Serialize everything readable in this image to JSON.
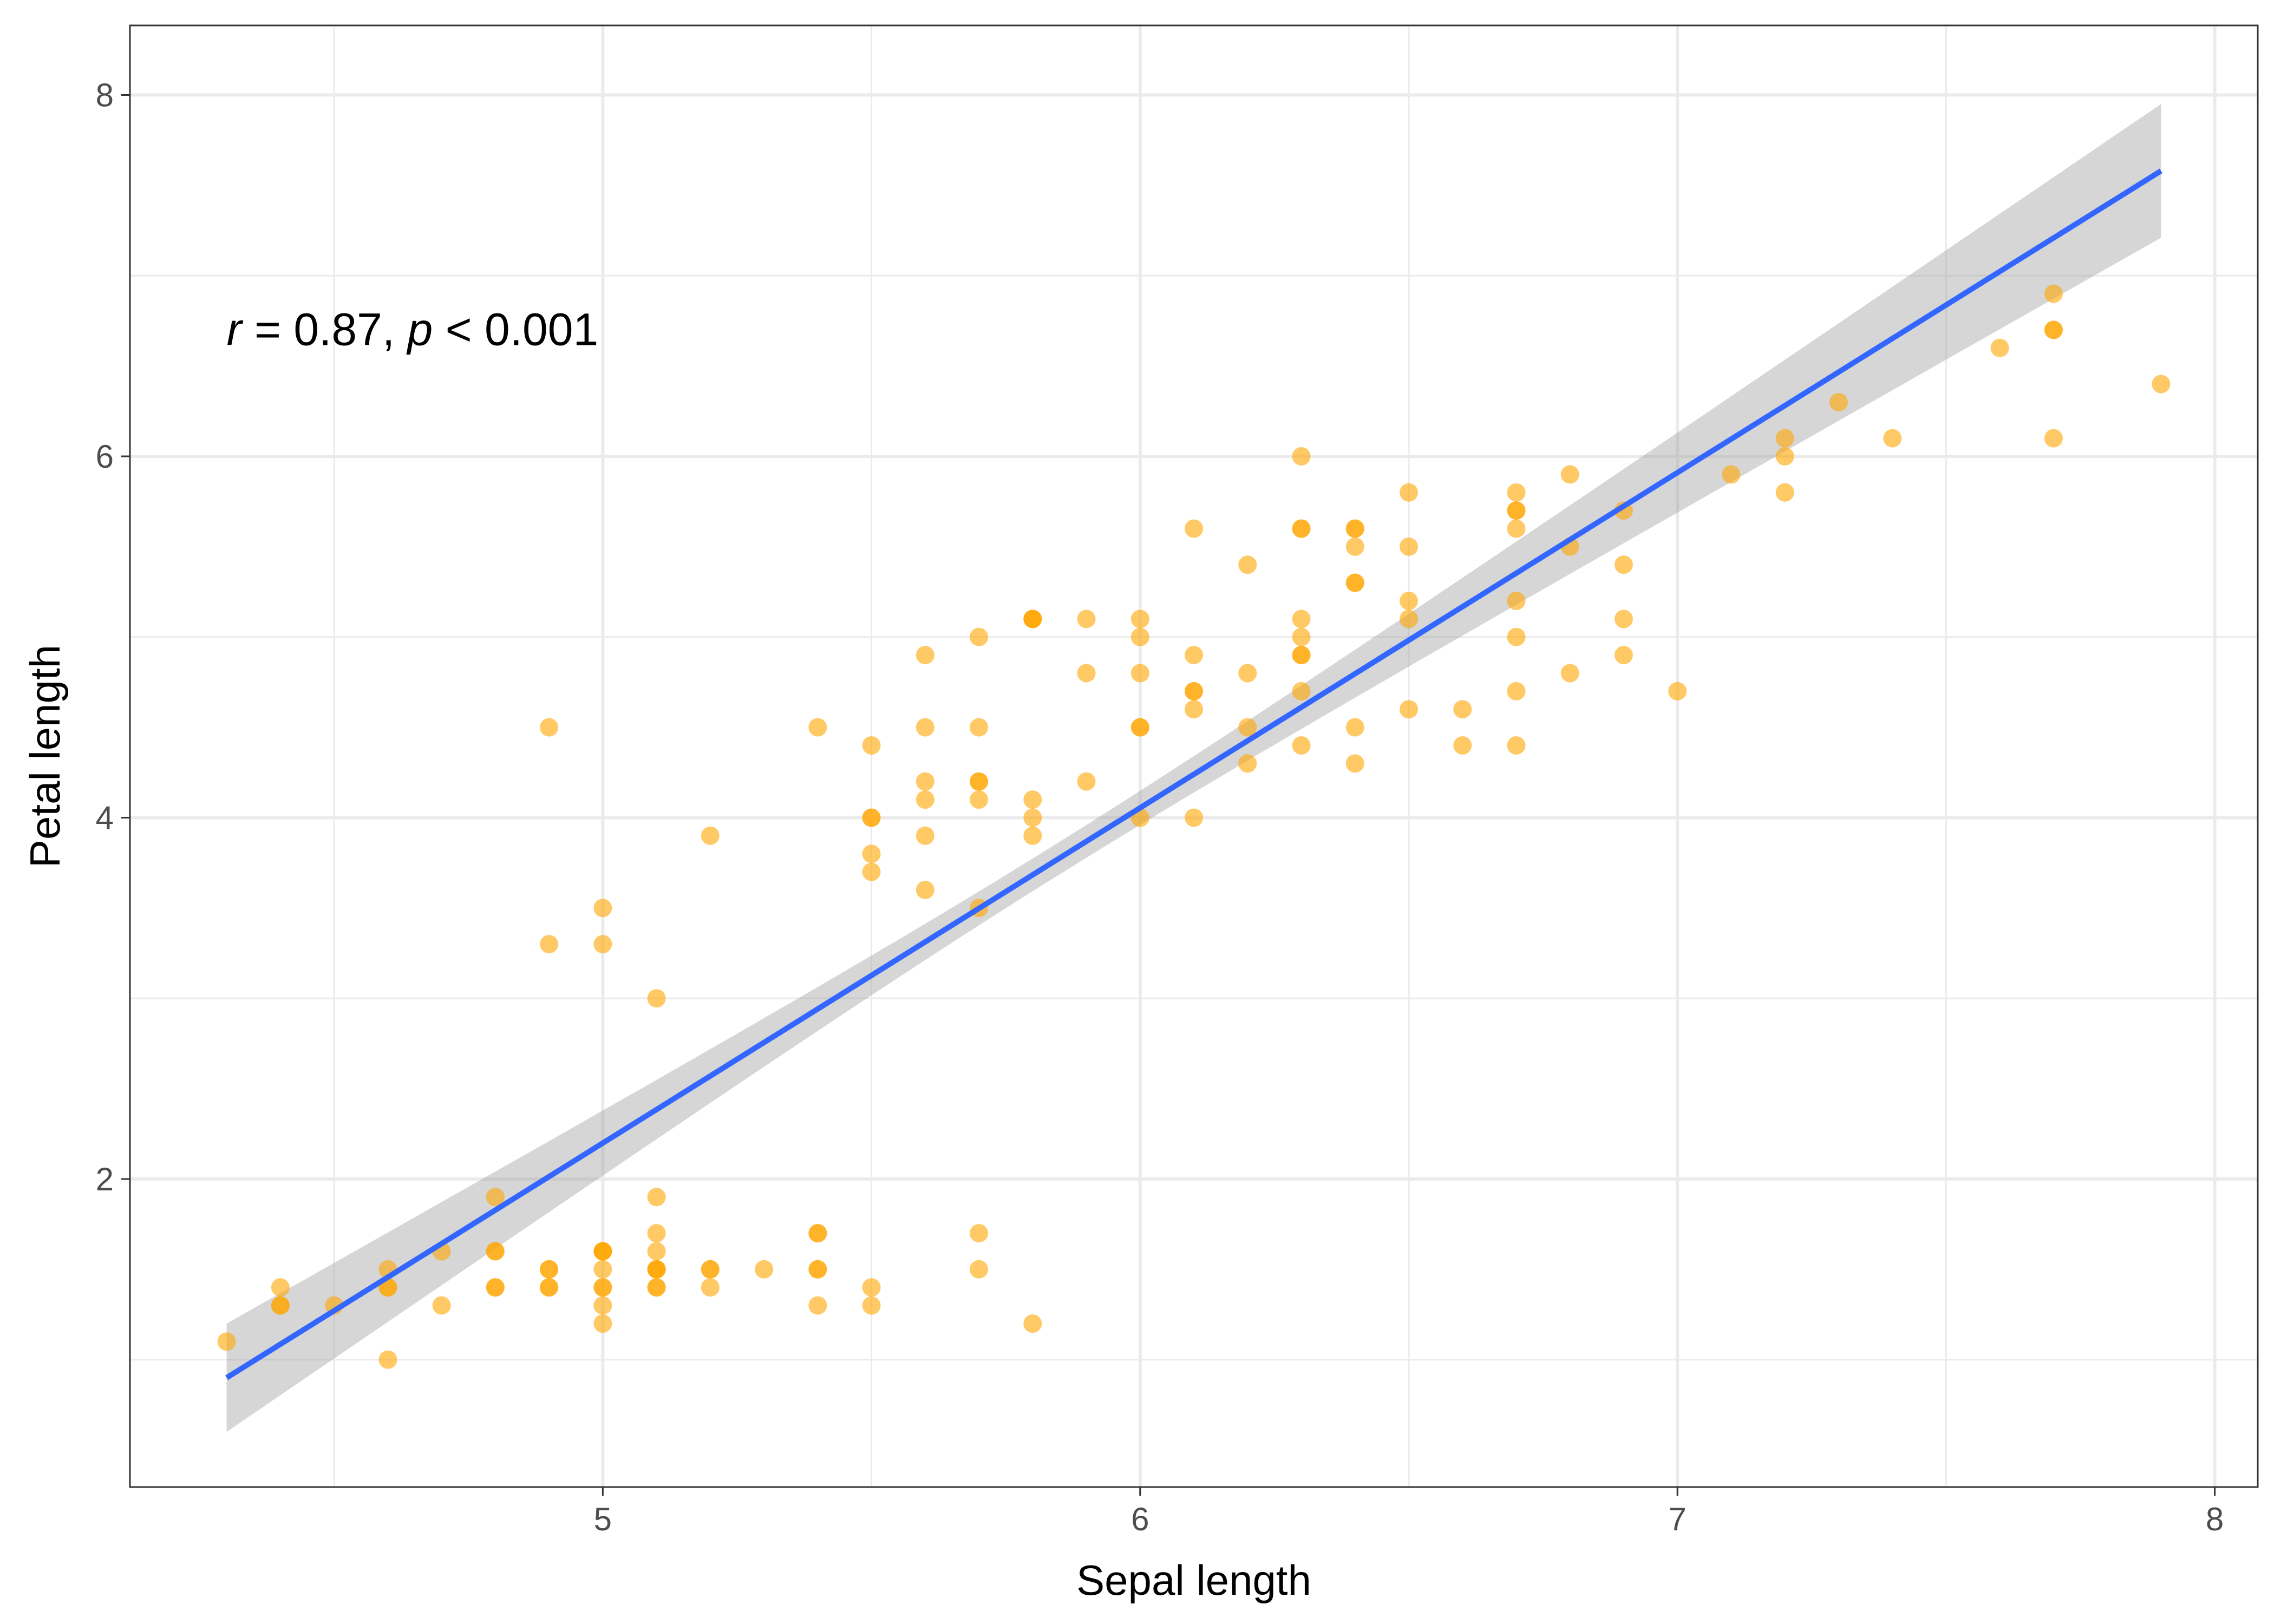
{
  "chart_data": {
    "type": "scatter",
    "title": "",
    "xlabel": "Sepal length",
    "ylabel": "Petal length",
    "xlim": [
      4.12,
      8.08
    ],
    "ylim": [
      0.295,
      8.385
    ],
    "x_ticks": [
      5,
      6,
      7,
      8
    ],
    "x_tick_labels": [
      "5",
      "6",
      "7",
      "8"
    ],
    "x_minor_ticks": [
      4.5,
      5.5,
      6.5,
      7.5
    ],
    "y_ticks": [
      2,
      4,
      6,
      8
    ],
    "y_tick_labels": [
      "2",
      "4",
      "6",
      "8"
    ],
    "y_minor_ticks": [
      1,
      3,
      5,
      7
    ],
    "grid": true,
    "legend": "none",
    "annotation": {
      "r_symbol": "r",
      "r_text": " = 0.87, ",
      "p_symbol": "p",
      "p_text": " < 0.001",
      "x": 4.3,
      "y": 6.7
    },
    "regression": {
      "x": [
        4.3,
        7.9
      ],
      "y": [
        0.9,
        7.58
      ],
      "ci_lower": [
        0.6,
        7.2
      ],
      "ci_upper": [
        1.2,
        7.95
      ],
      "center_x": 5.84,
      "center_y": 3.76
    },
    "colors": {
      "points": "#FFA500",
      "line": "#3366FF",
      "ribbon": "#999999",
      "grid": "#EBEBEB",
      "border": "#333333"
    },
    "points": [
      [
        5.1,
        1.4
      ],
      [
        4.9,
        1.4
      ],
      [
        4.7,
        1.3
      ],
      [
        4.6,
        1.5
      ],
      [
        5.0,
        1.4
      ],
      [
        5.4,
        1.7
      ],
      [
        4.6,
        1.4
      ],
      [
        5.0,
        1.5
      ],
      [
        4.4,
        1.4
      ],
      [
        4.9,
        1.5
      ],
      [
        5.4,
        1.5
      ],
      [
        4.8,
        1.6
      ],
      [
        4.8,
        1.4
      ],
      [
        4.3,
        1.1
      ],
      [
        5.8,
        1.2
      ],
      [
        5.7,
        1.5
      ],
      [
        5.4,
        1.3
      ],
      [
        5.1,
        1.4
      ],
      [
        5.7,
        1.7
      ],
      [
        5.1,
        1.5
      ],
      [
        5.4,
        1.7
      ],
      [
        5.1,
        1.5
      ],
      [
        4.6,
        1.0
      ],
      [
        5.1,
        1.7
      ],
      [
        4.8,
        1.9
      ],
      [
        5.0,
        1.6
      ],
      [
        5.0,
        1.6
      ],
      [
        5.2,
        1.5
      ],
      [
        5.2,
        1.4
      ],
      [
        4.7,
        1.6
      ],
      [
        4.8,
        1.6
      ],
      [
        5.4,
        1.5
      ],
      [
        5.2,
        1.5
      ],
      [
        5.5,
        1.4
      ],
      [
        4.9,
        1.5
      ],
      [
        5.0,
        1.2
      ],
      [
        5.5,
        1.3
      ],
      [
        4.9,
        1.4
      ],
      [
        4.4,
        1.3
      ],
      [
        5.1,
        1.5
      ],
      [
        5.0,
        1.3
      ],
      [
        4.5,
        1.3
      ],
      [
        4.4,
        1.3
      ],
      [
        5.0,
        1.6
      ],
      [
        5.1,
        1.9
      ],
      [
        4.8,
        1.4
      ],
      [
        5.1,
        1.6
      ],
      [
        4.6,
        1.4
      ],
      [
        5.3,
        1.5
      ],
      [
        5.0,
        1.4
      ],
      [
        7.0,
        4.7
      ],
      [
        6.4,
        4.5
      ],
      [
        6.9,
        4.9
      ],
      [
        5.5,
        4.0
      ],
      [
        6.5,
        4.6
      ],
      [
        5.7,
        4.5
      ],
      [
        6.3,
        4.7
      ],
      [
        4.9,
        3.3
      ],
      [
        6.6,
        4.6
      ],
      [
        5.2,
        3.9
      ],
      [
        5.0,
        3.5
      ],
      [
        5.9,
        4.2
      ],
      [
        6.0,
        4.0
      ],
      [
        6.1,
        4.7
      ],
      [
        5.6,
        3.6
      ],
      [
        6.7,
        4.4
      ],
      [
        5.6,
        4.5
      ],
      [
        5.8,
        4.1
      ],
      [
        6.2,
        4.5
      ],
      [
        5.6,
        3.9
      ],
      [
        5.9,
        4.8
      ],
      [
        6.1,
        4.0
      ],
      [
        6.3,
        4.9
      ],
      [
        6.1,
        4.7
      ],
      [
        6.4,
        4.3
      ],
      [
        6.6,
        4.4
      ],
      [
        6.8,
        4.8
      ],
      [
        6.7,
        5.0
      ],
      [
        6.0,
        4.5
      ],
      [
        5.7,
        3.5
      ],
      [
        5.5,
        3.8
      ],
      [
        5.5,
        3.7
      ],
      [
        5.8,
        3.9
      ],
      [
        6.0,
        5.1
      ],
      [
        5.4,
        4.5
      ],
      [
        6.0,
        4.5
      ],
      [
        6.7,
        4.7
      ],
      [
        6.3,
        4.4
      ],
      [
        5.6,
        4.1
      ],
      [
        5.5,
        4.0
      ],
      [
        5.5,
        4.4
      ],
      [
        6.1,
        4.6
      ],
      [
        5.8,
        4.0
      ],
      [
        5.0,
        3.3
      ],
      [
        5.6,
        4.2
      ],
      [
        5.7,
        4.2
      ],
      [
        5.7,
        4.2
      ],
      [
        6.2,
        4.3
      ],
      [
        5.1,
        3.0
      ],
      [
        5.7,
        4.1
      ],
      [
        6.3,
        6.0
      ],
      [
        5.8,
        5.1
      ],
      [
        7.1,
        5.9
      ],
      [
        6.3,
        5.6
      ],
      [
        6.5,
        5.8
      ],
      [
        7.6,
        6.6
      ],
      [
        4.9,
        4.5
      ],
      [
        7.3,
        6.3
      ],
      [
        6.7,
        5.8
      ],
      [
        7.2,
        6.1
      ],
      [
        6.5,
        5.1
      ],
      [
        6.4,
        5.3
      ],
      [
        6.8,
        5.5
      ],
      [
        5.7,
        5.0
      ],
      [
        5.8,
        5.1
      ],
      [
        6.4,
        5.3
      ],
      [
        6.5,
        5.5
      ],
      [
        7.7,
        6.7
      ],
      [
        7.7,
        6.9
      ],
      [
        6.0,
        5.0
      ],
      [
        6.9,
        5.7
      ],
      [
        5.6,
        4.9
      ],
      [
        7.7,
        6.7
      ],
      [
        6.3,
        4.9
      ],
      [
        6.7,
        5.7
      ],
      [
        7.2,
        6.0
      ],
      [
        6.2,
        4.8
      ],
      [
        6.1,
        4.9
      ],
      [
        6.4,
        5.6
      ],
      [
        7.2,
        5.8
      ],
      [
        7.4,
        6.1
      ],
      [
        7.9,
        6.4
      ],
      [
        6.4,
        5.6
      ],
      [
        6.3,
        5.1
      ],
      [
        6.1,
        5.6
      ],
      [
        7.7,
        6.1
      ],
      [
        6.3,
        5.6
      ],
      [
        6.4,
        5.5
      ],
      [
        6.0,
        4.8
      ],
      [
        6.9,
        5.4
      ],
      [
        6.7,
        5.6
      ],
      [
        6.9,
        5.1
      ],
      [
        5.8,
        5.1
      ],
      [
        6.8,
        5.9
      ],
      [
        6.7,
        5.7
      ],
      [
        6.7,
        5.2
      ],
      [
        6.3,
        5.0
      ],
      [
        6.5,
        5.2
      ],
      [
        6.2,
        5.4
      ],
      [
        5.9,
        5.1
      ]
    ]
  }
}
